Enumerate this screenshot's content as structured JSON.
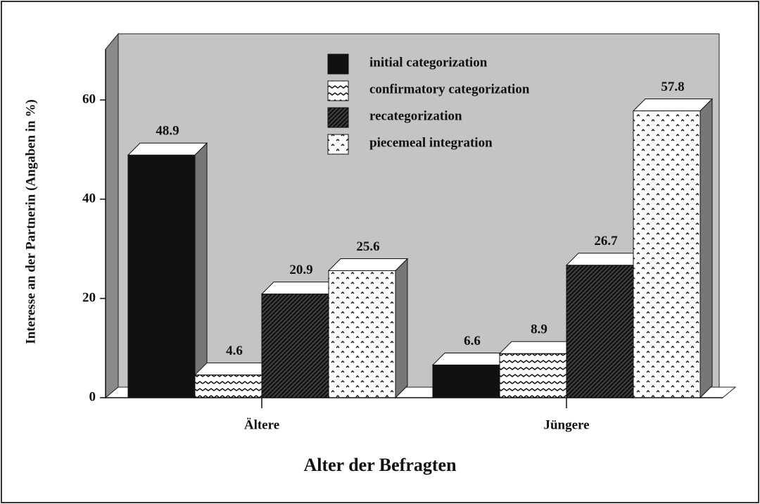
{
  "chart_data": {
    "type": "bar",
    "x_label": "Alter der Befragten",
    "y_label": "Interesse an der Partnerin (Angaben in %)",
    "categories": [
      "Ältere",
      "Jüngere"
    ],
    "series": [
      {
        "name": "initial categorization",
        "color": "#111111",
        "pattern": "solid",
        "values": [
          48.9,
          6.6
        ]
      },
      {
        "name": "confirmatory categorization",
        "color": "#ffffff",
        "pattern": "wave",
        "values": [
          4.6,
          8.9
        ]
      },
      {
        "name": "recategorization",
        "color": "#222222",
        "pattern": "hatch",
        "values": [
          20.9,
          26.7
        ]
      },
      {
        "name": "piecemeal integration",
        "color": "#ffffff",
        "pattern": "dots",
        "values": [
          25.6,
          57.8
        ]
      }
    ],
    "ylim": [
      0,
      70
    ],
    "yticks": [
      0,
      20,
      40,
      60
    ]
  }
}
